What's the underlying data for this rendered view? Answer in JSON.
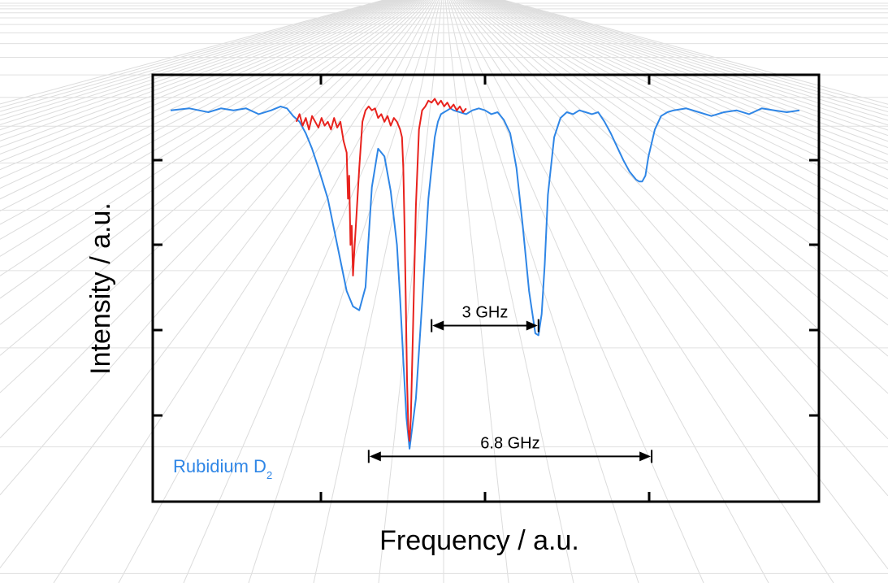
{
  "chart_data": {
    "type": "line",
    "title": "",
    "xlabel": "Frequency / a.u.",
    "ylabel": "Intensity / a.u.",
    "xlim": [
      0,
      100
    ],
    "ylim": [
      0,
      1
    ],
    "grid": false,
    "tick_labels_shown": false,
    "background": "perspective grid",
    "series": [
      {
        "name": "",
        "color": "#2f86e6",
        "x": [
          0,
          3,
          6,
          8,
          10,
          12,
          14,
          16,
          17.5,
          18.5,
          19.5,
          20.5,
          21.5,
          22.5,
          23.5,
          25,
          26.5,
          28,
          29,
          30,
          31,
          31.5,
          32,
          33,
          34,
          35,
          36,
          36.5,
          37,
          37.5,
          38,
          39,
          40,
          41,
          42,
          42.5,
          43,
          43.5,
          44,
          44.5,
          45,
          46,
          47,
          48,
          49,
          50,
          51,
          52,
          53,
          54,
          55,
          56,
          57,
          58,
          58.5,
          59,
          59.5,
          60,
          61,
          62,
          63,
          64,
          65,
          66,
          67,
          68,
          69,
          70,
          71,
          72,
          73,
          74,
          74.5,
          75,
          75.5,
          76,
          77,
          78,
          79,
          80,
          82,
          84,
          86,
          88,
          90,
          92,
          94,
          96,
          98,
          100
        ],
        "y": [
          0.95,
          0.955,
          0.945,
          0.955,
          0.95,
          0.955,
          0.94,
          0.95,
          0.96,
          0.955,
          0.935,
          0.92,
          0.89,
          0.85,
          0.8,
          0.72,
          0.6,
          0.48,
          0.44,
          0.43,
          0.49,
          0.62,
          0.75,
          0.85,
          0.83,
          0.74,
          0.6,
          0.46,
          0.3,
          0.15,
          0.07,
          0.2,
          0.45,
          0.72,
          0.88,
          0.92,
          0.94,
          0.945,
          0.95,
          0.955,
          0.95,
          0.945,
          0.94,
          0.95,
          0.955,
          0.95,
          0.94,
          0.945,
          0.925,
          0.89,
          0.8,
          0.65,
          0.48,
          0.37,
          0.365,
          0.42,
          0.55,
          0.73,
          0.88,
          0.93,
          0.945,
          0.94,
          0.95,
          0.945,
          0.94,
          0.945,
          0.92,
          0.89,
          0.855,
          0.82,
          0.79,
          0.77,
          0.765,
          0.765,
          0.78,
          0.83,
          0.9,
          0.935,
          0.945,
          0.95,
          0.955,
          0.945,
          0.935,
          0.945,
          0.95,
          0.94,
          0.955,
          0.95,
          0.945,
          0.95
        ]
      },
      {
        "name": "",
        "color": "#e8221d",
        "x": [
          20,
          20.5,
          21,
          21.5,
          22,
          22.5,
          23,
          23.5,
          24,
          24.5,
          25,
          25.5,
          26,
          26.5,
          27,
          27.5,
          28,
          28.2,
          28.4,
          28.6,
          28.8,
          29,
          29.2,
          29.5,
          30,
          30.5,
          31,
          31.5,
          32,
          32.5,
          33,
          33.5,
          34,
          34.5,
          35,
          35.5,
          36,
          36.5,
          36.8,
          37,
          37.2,
          37.4,
          37.6,
          37.8,
          38,
          38.2,
          38.5,
          39,
          39.5,
          40,
          40.5,
          41,
          41.5,
          42,
          42.5,
          43,
          43.5,
          44,
          44.5,
          45,
          45.5,
          46,
          46.5,
          47
        ],
        "y": [
          0.92,
          0.94,
          0.91,
          0.93,
          0.9,
          0.935,
          0.92,
          0.905,
          0.93,
          0.91,
          0.92,
          0.9,
          0.93,
          0.905,
          0.92,
          0.87,
          0.84,
          0.72,
          0.78,
          0.6,
          0.65,
          0.52,
          0.58,
          0.66,
          0.8,
          0.92,
          0.95,
          0.96,
          0.95,
          0.955,
          0.93,
          0.94,
          0.92,
          0.935,
          0.91,
          0.93,
          0.92,
          0.9,
          0.88,
          0.8,
          0.65,
          0.45,
          0.25,
          0.12,
          0.09,
          0.15,
          0.35,
          0.7,
          0.9,
          0.95,
          0.96,
          0.975,
          0.97,
          0.98,
          0.965,
          0.975,
          0.96,
          0.97,
          0.955,
          0.965,
          0.95,
          0.96,
          0.945,
          0.955
        ]
      }
    ],
    "annotations": [
      {
        "text": "3 GHz",
        "x_start": 41.5,
        "x_end": 58.5,
        "y": 0.39
      },
      {
        "text": "6.8 GHz",
        "x_start": 31.5,
        "x_end": 76.5,
        "y": 0.05
      }
    ],
    "legend_text": {
      "main": "Rubidium D",
      "subscript": "2",
      "color": "#2f86e6",
      "position": "bottom-left"
    }
  }
}
